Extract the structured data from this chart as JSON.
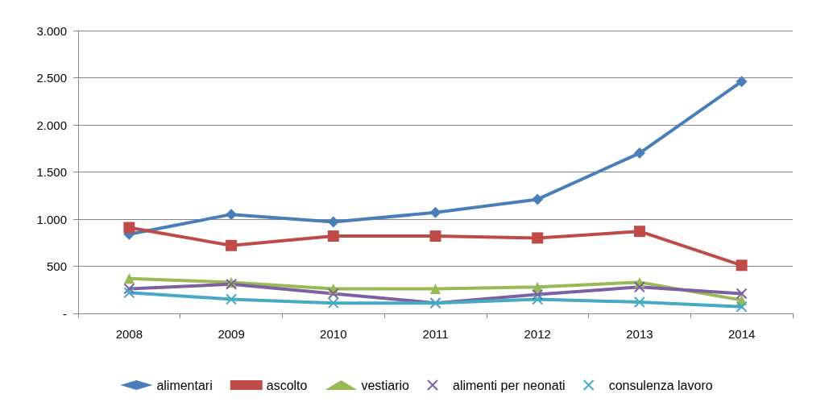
{
  "chart_data": {
    "type": "line",
    "categories": [
      "2008",
      "2009",
      "2010",
      "2011",
      "2012",
      "2013",
      "2014"
    ],
    "series": [
      {
        "name": "alimentari",
        "color": "#4a7ebb",
        "marker": "diamond",
        "values": [
          840,
          1050,
          970,
          1070,
          1210,
          1700,
          2460
        ]
      },
      {
        "name": "ascolto",
        "color": "#be4b48",
        "marker": "square",
        "values": [
          910,
          720,
          820,
          820,
          800,
          870,
          510
        ]
      },
      {
        "name": "vestiario",
        "color": "#98b954",
        "marker": "triangle",
        "values": [
          370,
          330,
          260,
          260,
          280,
          330,
          140
        ]
      },
      {
        "name": "alimenti per neonati",
        "color": "#7d60a0",
        "marker": "cross",
        "values": [
          260,
          310,
          210,
          110,
          200,
          280,
          210
        ]
      },
      {
        "name": "consulenza lavoro",
        "color": "#46aac5",
        "marker": "cross",
        "values": [
          220,
          150,
          110,
          110,
          150,
          120,
          70
        ]
      }
    ],
    "ylim": [
      0,
      3000
    ],
    "yticks": [
      {
        "value": 0,
        "label": "-"
      },
      500,
      {
        "value": 1000,
        "label": "1.000"
      },
      {
        "value": 1500,
        "label": "1.500"
      },
      {
        "value": 2000,
        "label": "2.000"
      },
      {
        "value": 2500,
        "label": "2.500"
      },
      {
        "value": 3000,
        "label": "3.000"
      }
    ],
    "grid": "y",
    "legend": "bottom",
    "line_style": "solid"
  }
}
